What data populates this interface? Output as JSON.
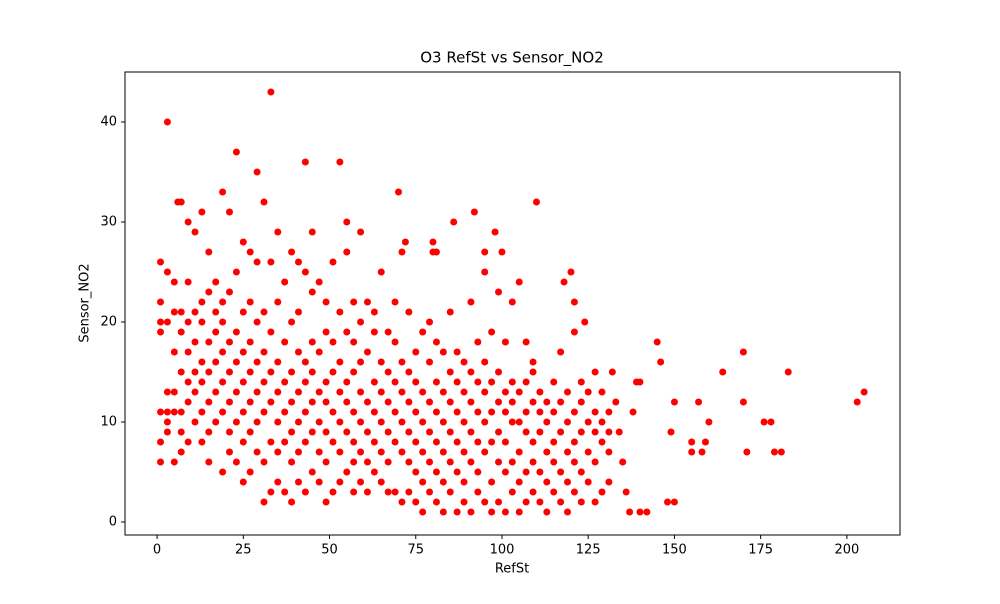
{
  "chart_data": {
    "type": "scatter",
    "title": "O3 RefSt  vs Sensor_NO2",
    "x_label": "RefSt",
    "y_label": "Sensor_NO2",
    "color": "#ff0000",
    "xlim": [
      -9.3,
      215.4
    ],
    "ylim": [
      -1.3,
      45
    ],
    "xticks": [
      0,
      25,
      50,
      75,
      100,
      125,
      150,
      175,
      200
    ],
    "yticks": [
      0,
      10,
      20,
      30,
      40
    ],
    "x": [
      1,
      1,
      1,
      1,
      1,
      1,
      1,
      3,
      3,
      3,
      3,
      3,
      3,
      5,
      5,
      5,
      5,
      5,
      5,
      7,
      7,
      7,
      7,
      7,
      7,
      7,
      9,
      9,
      9,
      9,
      9,
      9,
      9,
      11,
      11,
      11,
      11,
      11,
      11,
      13,
      13,
      13,
      13,
      13,
      13,
      13,
      15,
      15,
      15,
      15,
      15,
      15,
      15,
      17,
      17,
      17,
      17,
      17,
      17,
      19,
      19,
      19,
      19,
      19,
      19,
      19,
      21,
      21,
      21,
      21,
      21,
      21,
      21,
      23,
      23,
      23,
      23,
      23,
      23,
      23,
      25,
      25,
      25,
      25,
      25,
      25,
      25,
      27,
      27,
      27,
      27,
      27,
      27,
      27,
      29,
      29,
      29,
      29,
      29,
      29,
      29,
      31,
      31,
      31,
      31,
      31,
      31,
      31,
      33,
      33,
      33,
      33,
      33,
      33,
      33,
      35,
      35,
      35,
      35,
      35,
      35,
      35,
      37,
      37,
      37,
      37,
      37,
      37,
      39,
      39,
      39,
      39,
      39,
      39,
      39,
      41,
      41,
      41,
      41,
      41,
      41,
      41,
      43,
      43,
      43,
      43,
      43,
      43,
      43,
      45,
      45,
      45,
      45,
      45,
      45,
      45,
      47,
      47,
      47,
      47,
      47,
      47,
      49,
      49,
      49,
      49,
      49,
      49,
      49,
      51,
      51,
      51,
      51,
      51,
      51,
      53,
      53,
      53,
      53,
      53,
      53,
      53,
      55,
      55,
      55,
      55,
      55,
      55,
      55,
      57,
      57,
      57,
      57,
      57,
      57,
      57,
      59,
      59,
      59,
      59,
      59,
      59,
      59,
      61,
      61,
      61,
      61,
      61,
      61,
      63,
      63,
      63,
      63,
      63,
      63,
      65,
      65,
      65,
      65,
      65,
      65,
      67,
      67,
      67,
      67,
      67,
      67,
      69,
      69,
      69,
      69,
      69,
      69,
      71,
      71,
      71,
      71,
      71,
      71,
      73,
      73,
      73,
      73,
      73,
      73,
      75,
      75,
      75,
      75,
      75,
      75,
      77,
      77,
      77,
      77,
      77,
      77,
      79,
      79,
      79,
      79,
      79,
      79,
      81,
      81,
      81,
      81,
      81,
      81,
      81,
      83,
      83,
      83,
      83,
      83,
      83,
      85,
      85,
      85,
      85,
      85,
      85,
      87,
      87,
      87,
      87,
      87,
      87,
      89,
      89,
      89,
      89,
      89,
      89,
      91,
      91,
      91,
      91,
      91,
      91,
      93,
      93,
      93,
      93,
      93,
      93,
      95,
      95,
      95,
      95,
      95,
      95,
      97,
      97,
      97,
      97,
      97,
      97,
      99,
      99,
      99,
      99,
      99,
      99,
      101,
      101,
      101,
      101,
      101,
      101,
      103,
      103,
      103,
      103,
      103,
      103,
      105,
      105,
      105,
      105,
      105,
      105,
      107,
      107,
      107,
      107,
      107,
      107,
      109,
      109,
      109,
      109,
      109,
      109,
      111,
      111,
      111,
      111,
      111,
      113,
      113,
      113,
      113,
      113,
      115,
      115,
      115,
      115,
      115,
      117,
      117,
      117,
      117,
      117,
      119,
      119,
      119,
      119,
      119,
      121,
      121,
      121,
      121,
      121,
      123,
      123,
      123,
      123,
      123,
      125,
      125,
      125,
      125,
      127,
      127,
      127,
      127,
      127,
      129,
      129,
      129,
      129,
      131,
      131,
      131,
      131,
      3,
      6,
      70,
      110,
      92,
      86,
      98,
      95,
      100,
      80,
      72,
      80,
      120,
      121,
      124,
      118,
      140,
      145,
      146,
      150,
      149,
      148,
      150,
      155,
      155,
      157,
      158,
      159,
      160,
      164,
      170,
      170,
      171,
      176,
      178,
      179,
      181,
      183,
      203,
      205,
      138,
      139,
      142,
      140,
      137,
      136,
      135,
      134,
      133,
      132
    ],
    "y": [
      6,
      8,
      11,
      19,
      20,
      22,
      26,
      9,
      10,
      11,
      13,
      20,
      25,
      6,
      11,
      13,
      17,
      21,
      24,
      7,
      9,
      11,
      15,
      19,
      21,
      32,
      8,
      12,
      14,
      17,
      20,
      24,
      30,
      10,
      13,
      15,
      18,
      21,
      29,
      8,
      11,
      14,
      16,
      20,
      22,
      31,
      6,
      9,
      12,
      15,
      18,
      23,
      27,
      10,
      13,
      16,
      19,
      21,
      24,
      5,
      11,
      14,
      17,
      20,
      22,
      33,
      7,
      9,
      12,
      15,
      18,
      23,
      31,
      6,
      10,
      13,
      16,
      19,
      25,
      37,
      4,
      8,
      11,
      14,
      17,
      21,
      28,
      5,
      9,
      12,
      15,
      18,
      22,
      27,
      7,
      10,
      13,
      16,
      20,
      26,
      35,
      2,
      6,
      11,
      14,
      17,
      21,
      32,
      3,
      8,
      12,
      15,
      19,
      26,
      43,
      4,
      7,
      10,
      13,
      16,
      22,
      29,
      3,
      8,
      11,
      14,
      18,
      24,
      2,
      6,
      9,
      12,
      15,
      20,
      27,
      4,
      7,
      10,
      13,
      17,
      21,
      26,
      3,
      8,
      11,
      14,
      16,
      25,
      36,
      5,
      9,
      12,
      15,
      18,
      23,
      29,
      4,
      7,
      10,
      13,
      17,
      24,
      2,
      6,
      9,
      12,
      14,
      19,
      22,
      3,
      8,
      11,
      15,
      18,
      26,
      4,
      7,
      10,
      13,
      16,
      21,
      36,
      5,
      9,
      12,
      14,
      19,
      27,
      30,
      3,
      6,
      8,
      11,
      15,
      18,
      22,
      4,
      7,
      10,
      13,
      16,
      20,
      29,
      3,
      6,
      9,
      12,
      17,
      22,
      5,
      8,
      11,
      14,
      19,
      21,
      4,
      7,
      10,
      13,
      16,
      25,
      3,
      6,
      9,
      12,
      15,
      19,
      3,
      8,
      11,
      14,
      18,
      22,
      2,
      7,
      10,
      13,
      16,
      27,
      3,
      6,
      9,
      12,
      15,
      21,
      2,
      5,
      8,
      11,
      14,
      17,
      1,
      4,
      7,
      10,
      13,
      19,
      3,
      6,
      9,
      12,
      16,
      20,
      2,
      5,
      8,
      11,
      14,
      18,
      27,
      1,
      4,
      7,
      10,
      13,
      17,
      3,
      6,
      9,
      12,
      15,
      21,
      1,
      5,
      8,
      11,
      14,
      17,
      2,
      4,
      7,
      10,
      13,
      16,
      1,
      6,
      9,
      12,
      15,
      22,
      3,
      5,
      8,
      11,
      14,
      18,
      2,
      7,
      10,
      13,
      16,
      25,
      1,
      4,
      8,
      11,
      14,
      19,
      2,
      6,
      9,
      12,
      15,
      23,
      1,
      5,
      8,
      11,
      13,
      18,
      3,
      6,
      10,
      12,
      14,
      22,
      1,
      4,
      7,
      10,
      13,
      24,
      2,
      5,
      9,
      11,
      14,
      18,
      3,
      6,
      8,
      12,
      15,
      16,
      2,
      5,
      9,
      11,
      13,
      1,
      4,
      7,
      10,
      12,
      3,
      6,
      8,
      11,
      14,
      2,
      5,
      9,
      12,
      17,
      1,
      4,
      7,
      10,
      13,
      3,
      6,
      8,
      11,
      19,
      2,
      5,
      9,
      12,
      14,
      4,
      7,
      10,
      13,
      2,
      6,
      9,
      11,
      15,
      3,
      8,
      10,
      13,
      4,
      7,
      9,
      11,
      40,
      32,
      33,
      32,
      31,
      30,
      29,
      27,
      27,
      28,
      28,
      27,
      25,
      22,
      20,
      24,
      14,
      18,
      16,
      12,
      9,
      2,
      2,
      8,
      7,
      12,
      7,
      8,
      10,
      15,
      17,
      12,
      7,
      10,
      10,
      7,
      7,
      15,
      12,
      13,
      11,
      14,
      1,
      1,
      1,
      3,
      6,
      9,
      12,
      15
    ]
  }
}
